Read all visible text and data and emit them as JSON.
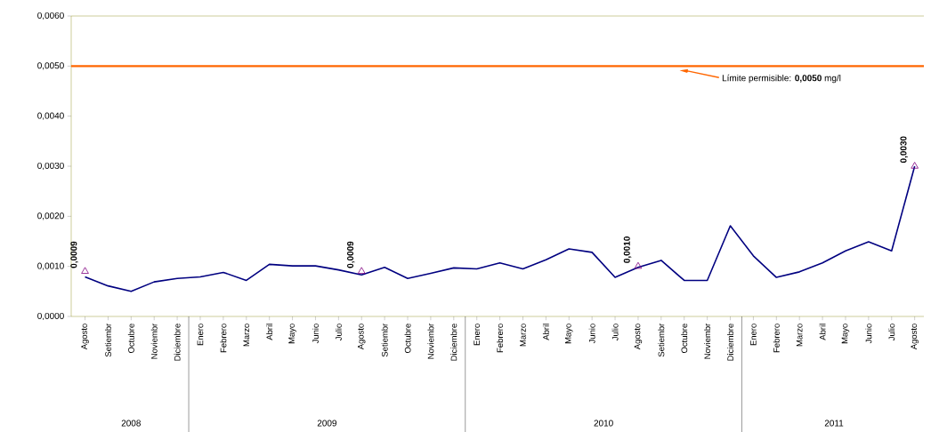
{
  "chart_data": {
    "type": "line",
    "categories": [
      "Agosto",
      "Setiembr",
      "Octubre",
      "Noviembr",
      "Diciembre",
      "Enero",
      "Febrero",
      "Marzo",
      "Abril",
      "Mayo",
      "Junio",
      "Julio",
      "Agosto",
      "Setiembr",
      "Octubre",
      "Noviembr",
      "Diciembre",
      "Enero",
      "Febrero",
      "Marzo",
      "Abril",
      "Mayo",
      "Junio",
      "Julio",
      "Agosto",
      "Setiembr",
      "Octubre",
      "Noviembr",
      "Diciembre",
      "Enero",
      "Febrero",
      "Marzo",
      "Abril",
      "Mayo",
      "Junio",
      "Julio",
      "Agosto"
    ],
    "series": [
      {
        "color": "#000080",
        "values": [
          0.00079,
          0.00061,
          0.0005,
          0.00069,
          0.00076,
          0.00079,
          0.00088,
          0.00072,
          0.00104,
          0.00101,
          0.00101,
          0.00093,
          0.00083,
          0.00098,
          0.00076,
          0.00086,
          0.00097,
          0.00095,
          0.00107,
          0.00095,
          0.00113,
          0.00135,
          0.00128,
          0.00078,
          0.00098,
          0.00112,
          0.00072,
          0.00072,
          0.00181,
          0.00121,
          0.00078,
          0.00089,
          0.00107,
          0.00131,
          0.00149,
          0.00131,
          0.003
        ]
      },
      {
        "type": "scatter",
        "color": "#800080",
        "marker": "triangle",
        "values": [
          0.0009,
          null,
          null,
          null,
          null,
          null,
          null,
          null,
          null,
          null,
          null,
          null,
          0.0009,
          null,
          null,
          null,
          null,
          null,
          null,
          null,
          null,
          null,
          null,
          null,
          0.001,
          null,
          null,
          null,
          null,
          null,
          null,
          null,
          null,
          null,
          null,
          null,
          0.003
        ],
        "value_labels": [
          "0,0009",
          null,
          null,
          null,
          null,
          null,
          null,
          null,
          null,
          null,
          null,
          null,
          "0,0009",
          null,
          null,
          null,
          null,
          null,
          null,
          null,
          null,
          null,
          null,
          null,
          "0,0010",
          null,
          null,
          null,
          null,
          null,
          null,
          null,
          null,
          null,
          null,
          null,
          "0,0030"
        ]
      }
    ],
    "ylim": [
      0,
      0.006
    ],
    "yticks": [
      {
        "value": 0,
        "label": "0,0000"
      },
      {
        "value": 0.001,
        "label": "0,0010"
      },
      {
        "value": 0.002,
        "label": "0,0020"
      },
      {
        "value": 0.003,
        "label": "0,0030"
      },
      {
        "value": 0.004,
        "label": "0,0040"
      },
      {
        "value": 0.005,
        "label": "0,0050"
      },
      {
        "value": 0.006,
        "label": "0,0060"
      }
    ],
    "ref_lines": [
      {
        "axis": "y",
        "value": 0.005,
        "label": "Límite permisible: **0,0050** mg/l",
        "color": "#ff6600"
      }
    ],
    "annotations": [
      "2008",
      "2009",
      "2010",
      "2011"
    ],
    "grid": false
  }
}
